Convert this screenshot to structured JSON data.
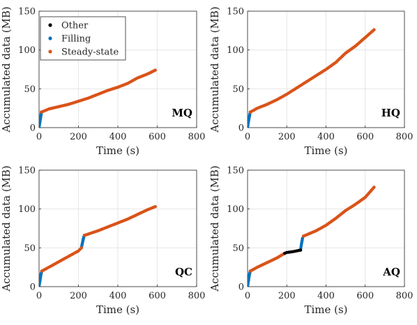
{
  "colors": {
    "other": "#000000",
    "filling": "#0072BD",
    "steady": "#D95319",
    "grid": "#e6e6e6",
    "axis": "#262626"
  },
  "legend": {
    "placement": "top-left of first panel",
    "entries": [
      {
        "key": "other",
        "label": "Other"
      },
      {
        "key": "filling",
        "label": "Filling"
      },
      {
        "key": "steady",
        "label": "Steady-state"
      }
    ]
  },
  "chart_data": [
    {
      "type": "scatter",
      "tag": "MQ",
      "xlabel": "Time (s)",
      "ylabel": "Accumulated data (MB)",
      "xlim": [
        0,
        800
      ],
      "ylim": [
        0,
        150
      ],
      "xticks": [
        0,
        200,
        400,
        600,
        800
      ],
      "yticks": [
        0,
        50,
        100,
        150
      ],
      "grid": true,
      "series": [
        {
          "key": "filling",
          "segments": [
            [
              [
                0,
                0
              ],
              [
                5,
                8
              ],
              [
                10,
                16
              ],
              [
                12,
                20
              ]
            ]
          ]
        },
        {
          "key": "steady",
          "segments": [
            [
              [
                12,
                20
              ],
              [
                50,
                24
              ],
              [
                100,
                27
              ],
              [
                150,
                30
              ],
              [
                200,
                34
              ],
              [
                250,
                38
              ],
              [
                300,
                43
              ],
              [
                350,
                48
              ],
              [
                400,
                52
              ],
              [
                450,
                57
              ],
              [
                500,
                64
              ],
              [
                550,
                69
              ],
              [
                590,
                74
              ]
            ]
          ]
        }
      ]
    },
    {
      "type": "scatter",
      "tag": "HQ",
      "xlabel": "Time (s)",
      "ylabel": "Accumulated data (MB)",
      "xlim": [
        0,
        800
      ],
      "ylim": [
        0,
        150
      ],
      "xticks": [
        0,
        200,
        400,
        600,
        800
      ],
      "yticks": [
        0,
        50,
        100,
        150
      ],
      "grid": true,
      "series": [
        {
          "key": "filling",
          "segments": [
            [
              [
                0,
                0
              ],
              [
                5,
                8
              ],
              [
                10,
                15
              ],
              [
                14,
                20
              ]
            ]
          ]
        },
        {
          "key": "steady",
          "segments": [
            [
              [
                14,
                20
              ],
              [
                50,
                25
              ],
              [
                100,
                30
              ],
              [
                150,
                36
              ],
              [
                200,
                43
              ],
              [
                250,
                51
              ],
              [
                300,
                59
              ],
              [
                350,
                67
              ],
              [
                400,
                75
              ],
              [
                450,
                84
              ],
              [
                500,
                96
              ],
              [
                550,
                105
              ],
              [
                600,
                116
              ],
              [
                645,
                126
              ]
            ]
          ]
        }
      ]
    },
    {
      "type": "scatter",
      "tag": "QC",
      "xlabel": "Time (s)",
      "ylabel": "Accumulated data (MB)",
      "xlim": [
        0,
        800
      ],
      "ylim": [
        0,
        150
      ],
      "xticks": [
        0,
        200,
        400,
        600,
        800
      ],
      "yticks": [
        0,
        50,
        100,
        150
      ],
      "grid": true,
      "series": [
        {
          "key": "filling",
          "segments": [
            [
              [
                0,
                0
              ],
              [
                5,
                8
              ],
              [
                10,
                16
              ],
              [
                14,
                20
              ]
            ],
            [
              [
                215,
                50
              ],
              [
                220,
                56
              ],
              [
                225,
                62
              ],
              [
                230,
                66
              ]
            ]
          ]
        },
        {
          "key": "steady",
          "segments": [
            [
              [
                14,
                20
              ],
              [
                50,
                25
              ],
              [
                100,
                32
              ],
              [
                150,
                39
              ],
              [
                200,
                46
              ],
              [
                215,
                50
              ]
            ],
            [
              [
                230,
                66
              ],
              [
                300,
                72
              ],
              [
                350,
                77
              ],
              [
                400,
                82
              ],
              [
                450,
                87
              ],
              [
                500,
                93
              ],
              [
                550,
                99
              ],
              [
                590,
                103
              ]
            ]
          ]
        }
      ]
    },
    {
      "type": "scatter",
      "tag": "AQ",
      "xlabel": "Time (s)",
      "ylabel": "Accumulated data (MB)",
      "xlim": [
        0,
        800
      ],
      "ylim": [
        0,
        150
      ],
      "xticks": [
        0,
        200,
        400,
        600,
        800
      ],
      "yticks": [
        0,
        50,
        100,
        150
      ],
      "grid": true,
      "series": [
        {
          "key": "filling",
          "segments": [
            [
              [
                0,
                0
              ],
              [
                5,
                8
              ],
              [
                10,
                16
              ],
              [
                14,
                20
              ]
            ],
            [
              [
                270,
                47
              ],
              [
                275,
                55
              ],
              [
                280,
                62
              ],
              [
                285,
                65
              ]
            ]
          ]
        },
        {
          "key": "steady",
          "segments": [
            [
              [
                14,
                20
              ],
              [
                50,
                25
              ],
              [
                100,
                31
              ],
              [
                150,
                37
              ],
              [
                190,
                43
              ]
            ],
            [
              [
                285,
                65
              ],
              [
                350,
                72
              ],
              [
                400,
                79
              ],
              [
                450,
                88
              ],
              [
                500,
                98
              ],
              [
                550,
                106
              ],
              [
                600,
                115
              ],
              [
                645,
                128
              ]
            ]
          ]
        },
        {
          "key": "other",
          "segments": [
            [
              [
                190,
                43
              ],
              [
                200,
                44
              ],
              [
                230,
                45
              ],
              [
                250,
                46
              ],
              [
                270,
                47
              ]
            ]
          ]
        }
      ]
    }
  ]
}
